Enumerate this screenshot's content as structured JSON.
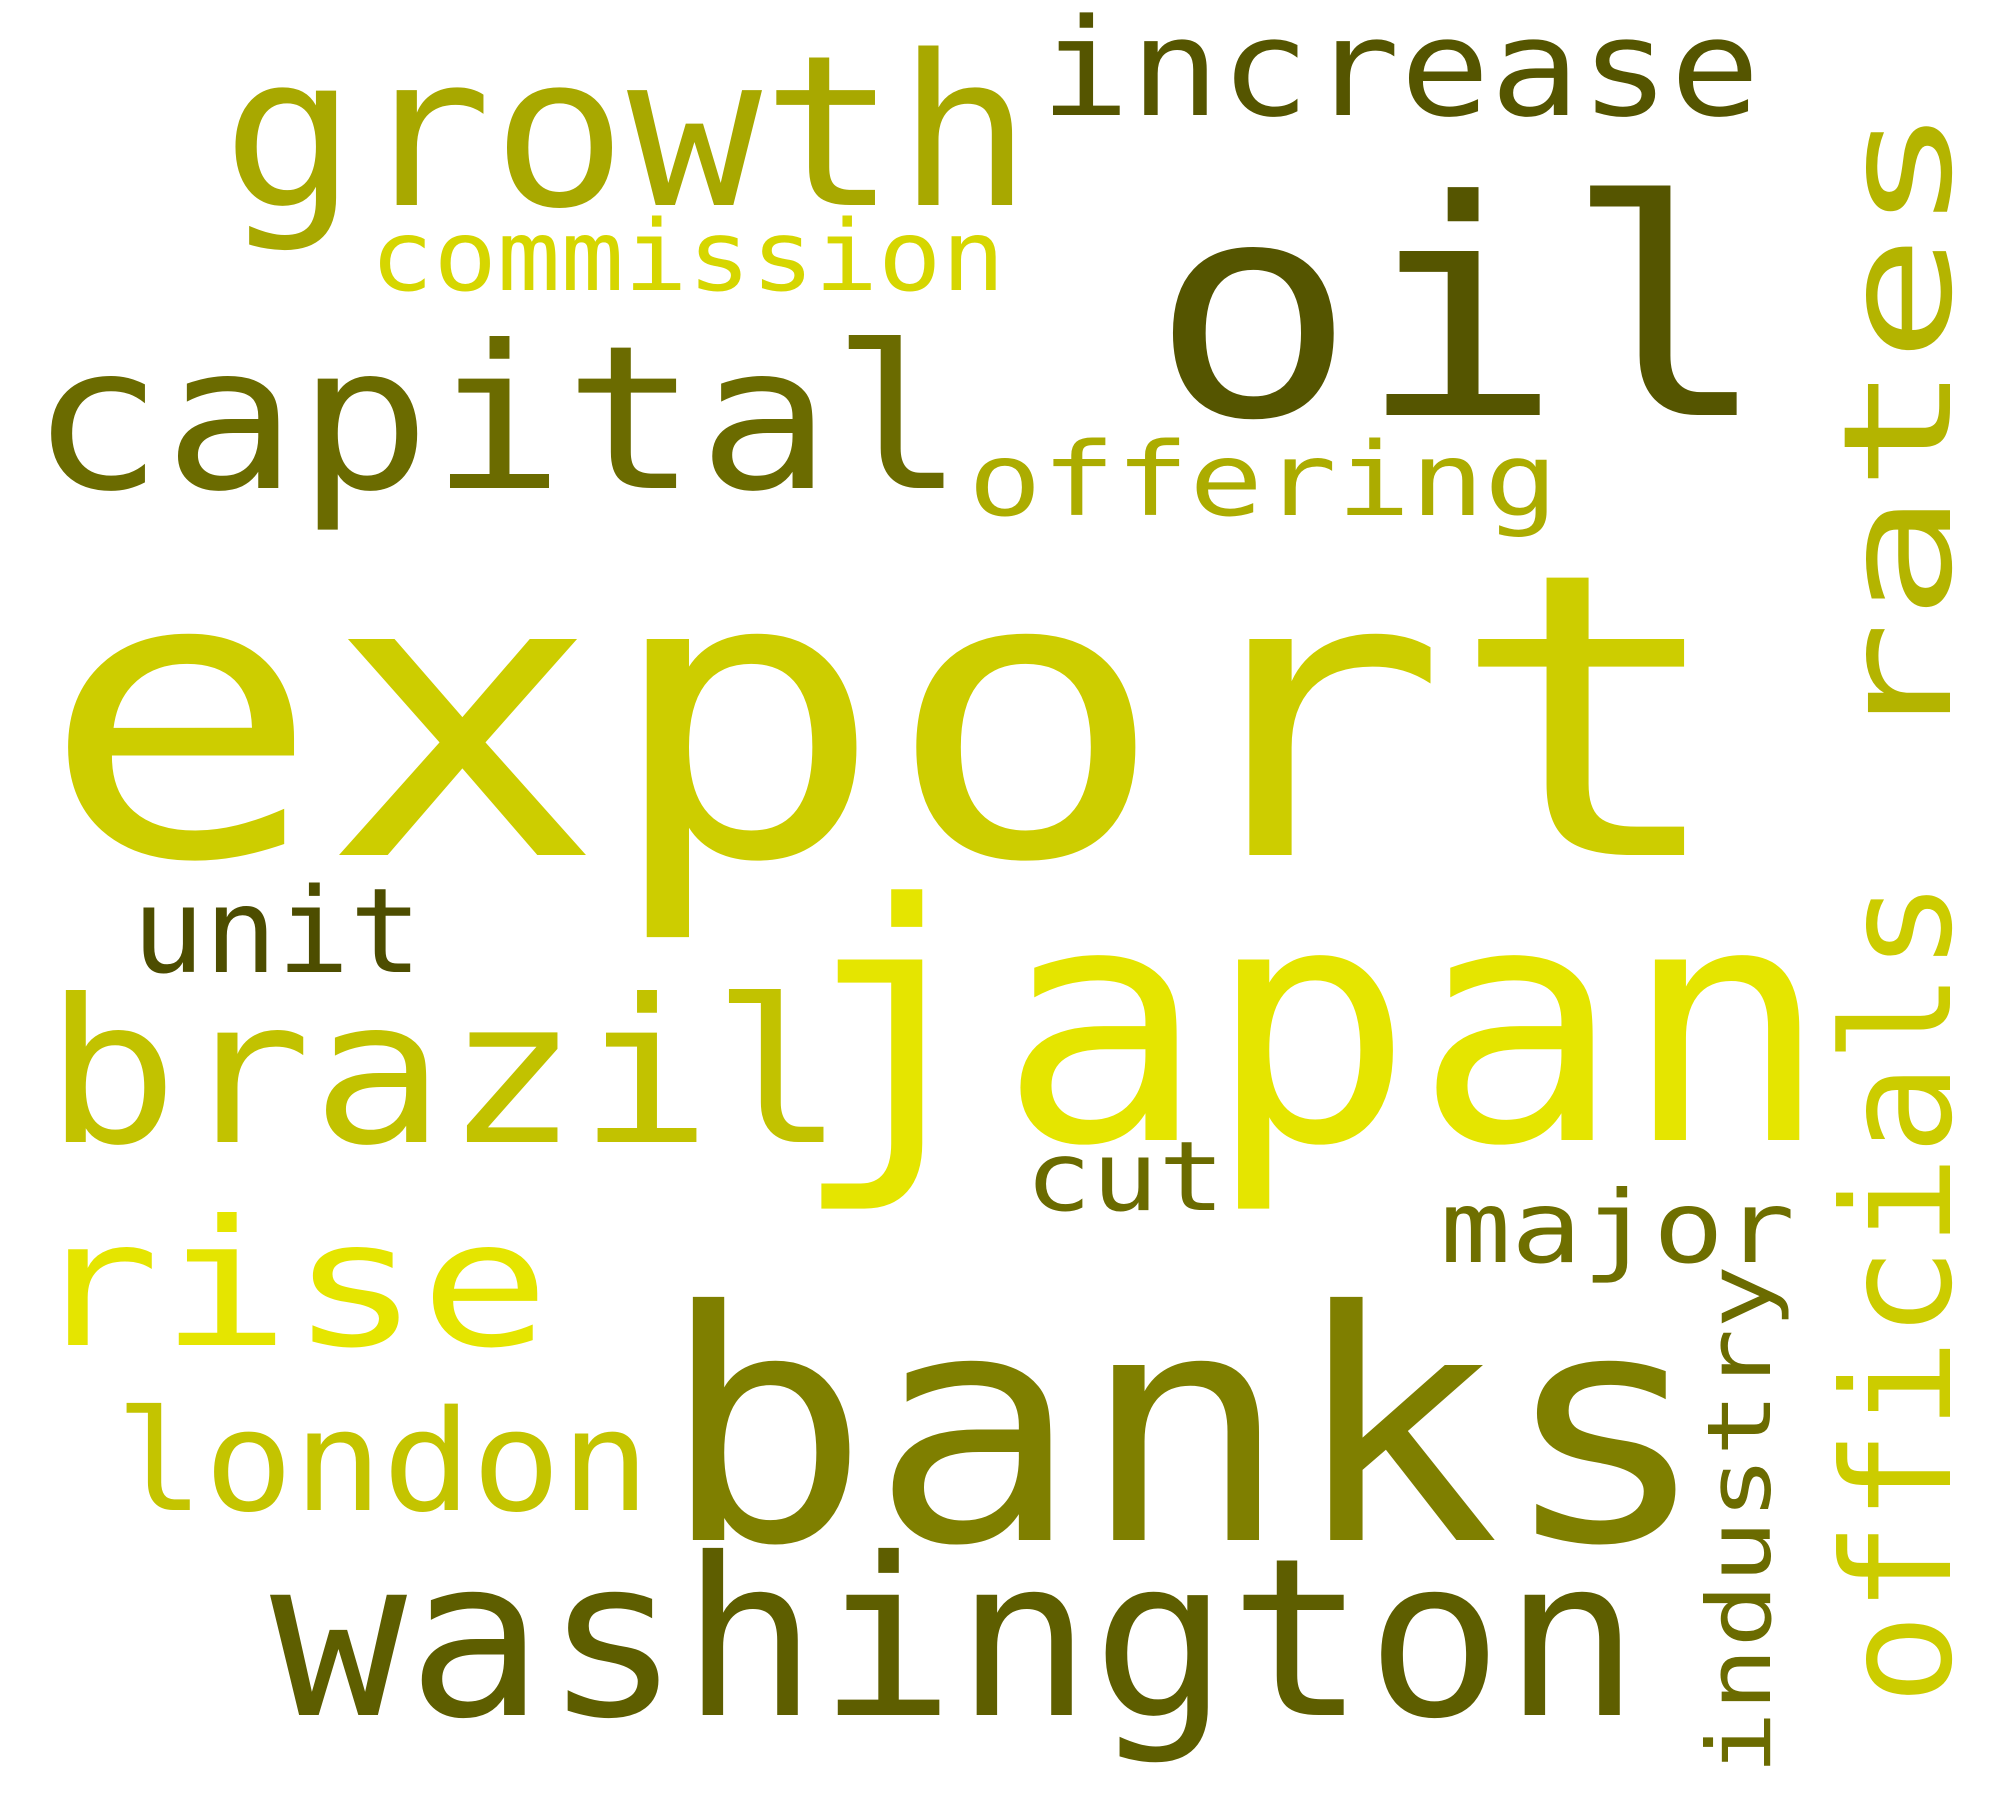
{
  "words": [
    {
      "text": "export",
      "color": "#cdcd00"
    },
    {
      "text": "japan",
      "color": "#e5e500"
    },
    {
      "text": "banks",
      "color": "#7f7f00"
    },
    {
      "text": "oil",
      "color": "#555500"
    },
    {
      "text": "growth",
      "color": "#a8a800"
    },
    {
      "text": "capital",
      "color": "#6b6b00"
    },
    {
      "text": "brazil",
      "color": "#c2c200"
    },
    {
      "text": "washington",
      "color": "#5e5e00"
    },
    {
      "text": "rates",
      "color": "#b4b400"
    },
    {
      "text": "officials",
      "color": "#cccc00"
    },
    {
      "text": "rise",
      "color": "#e5e500"
    },
    {
      "text": "london",
      "color": "#c4c400"
    },
    {
      "text": "increase",
      "color": "#555500"
    },
    {
      "text": "commission",
      "color": "#d6d600"
    },
    {
      "text": "offering",
      "color": "#acac00"
    },
    {
      "text": "unit",
      "color": "#4d4d00"
    },
    {
      "text": "cut",
      "color": "#6b6b00"
    },
    {
      "text": "major",
      "color": "#6f6f00"
    },
    {
      "text": "industry",
      "color": "#6b6b00"
    }
  ]
}
